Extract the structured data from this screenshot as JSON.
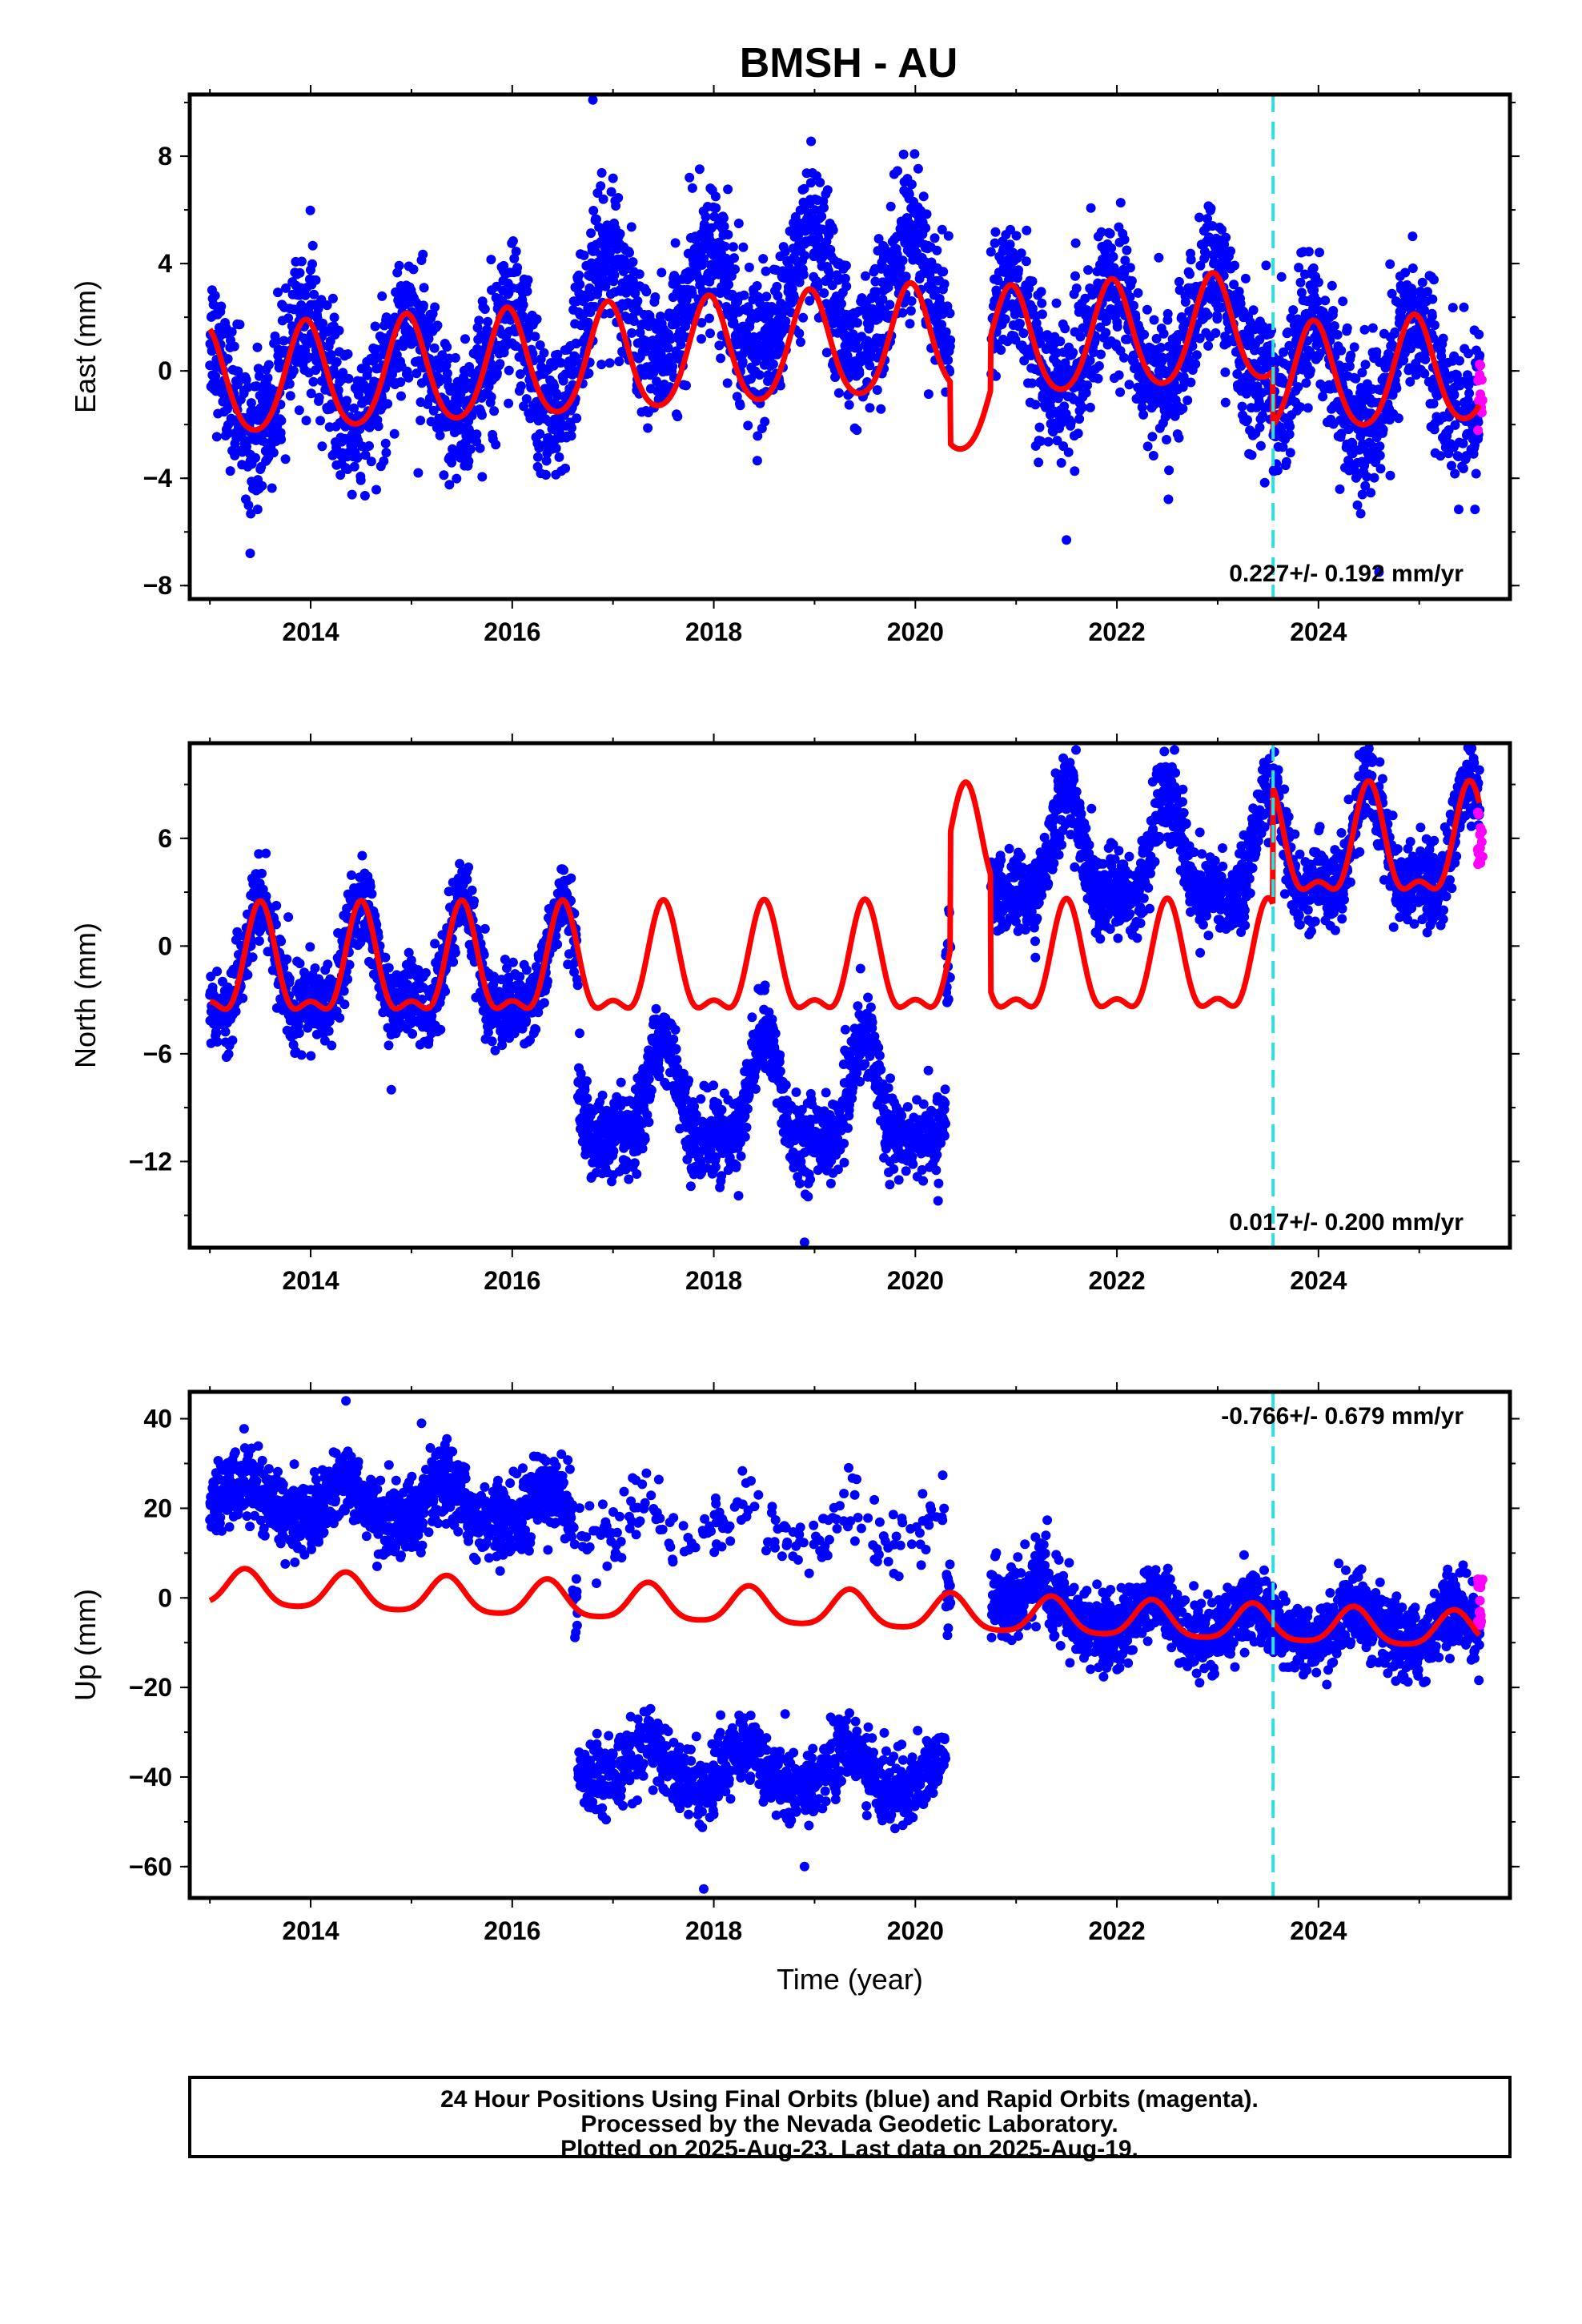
{
  "title": "BMSH - AU",
  "footer": {
    "line1": "24 Hour Positions Using Final Orbits (blue) and Rapid Orbits (magenta).",
    "line2": "Processed by the Nevada Geodetic Laboratory.",
    "line3": "Plotted on 2025-Aug-23. Last data on 2025-Aug-19."
  },
  "colors": {
    "final_points": "#0000ff",
    "rapid_points": "#ff00ff",
    "model": "#ff0000",
    "event_line": "#33dddd",
    "frame": "#000000"
  },
  "chart_data": [
    {
      "type": "scatter",
      "component": "east",
      "ylabel": "East (mm)",
      "xlabel": "",
      "xlim": [
        2012.8,
        2025.9
      ],
      "ylim": [
        -8.5,
        10.3
      ],
      "xticks": [
        2014,
        2016,
        2018,
        2020,
        2022,
        2024
      ],
      "yticks": [
        -8,
        -4,
        0,
        4,
        8
      ],
      "rate": "0.227+/- 0.192 mm/yr",
      "event_line_x": 2023.55,
      "segments": [
        {
          "start": 2013.0,
          "end": 2020.35,
          "offset": 0.0
        },
        {
          "start": 2020.75,
          "end": 2023.55,
          "offset": -0.3
        },
        {
          "start": 2023.55,
          "end": 2025.6,
          "offset": -2.3
        }
      ],
      "model": {
        "start_value": -0.55,
        "rate": 0.227,
        "annual_amp": 2.0,
        "annual_phase_year": 2013.95,
        "semiannual_amp": 0.25
      },
      "scatter_sd": 1.3,
      "drift_anomalies": [
        {
          "start": 2016.6,
          "end": 2020.35,
          "shift": 1.8
        }
      ],
      "rapid_range": [
        -2.5,
        0.3
      ],
      "outliers": [
        [
          2016.8,
          10.1
        ],
        [
          2013.4,
          -6.8
        ],
        [
          2024.6,
          -7.5
        ],
        [
          2021.5,
          -6.3
        ]
      ]
    },
    {
      "type": "scatter",
      "component": "north",
      "ylabel": "North (mm)",
      "xlabel": "",
      "xlim": [
        2012.8,
        2025.9
      ],
      "ylim": [
        -16.8,
        11.3
      ],
      "xticks": [
        2014,
        2016,
        2018,
        2020,
        2022,
        2024
      ],
      "yticks": [
        -12,
        -6,
        0,
        6
      ],
      "rate": "0.017+/- 0.200 mm/yr",
      "event_line_x": 2023.55,
      "segments": [
        {
          "start": 2013.0,
          "end": 2020.35,
          "offset": 0.0
        },
        {
          "start": 2020.75,
          "end": 2023.55,
          "offset": 0.0
        },
        {
          "start": 2023.55,
          "end": 2025.6,
          "offset": 6.5
        }
      ],
      "model": {
        "start_value": -1.5,
        "rate": 0.017,
        "annual_amp": 2.8,
        "annual_phase_year": 2013.5,
        "semiannual_amp": 1.2
      },
      "scatter_sd": 1.1,
      "drift_anomalies": [
        {
          "start": 2016.65,
          "end": 2020.3,
          "shift": -7.5
        },
        {
          "start": 2020.75,
          "end": 2023.55,
          "shift": 6.0
        }
      ],
      "rapid_range": [
        4.0,
        7.5
      ],
      "outliers": [
        [
          2018.9,
          -16.5
        ],
        [
          2024.5,
          11.0
        ],
        [
          2014.8,
          -8.0
        ]
      ]
    },
    {
      "type": "scatter",
      "component": "up",
      "ylabel": "Up (mm)",
      "xlabel": "Time (year)",
      "xlim": [
        2012.8,
        2025.9
      ],
      "ylim": [
        -67,
        46
      ],
      "xticks": [
        2014,
        2016,
        2018,
        2020,
        2022,
        2024
      ],
      "yticks": [
        -60,
        -40,
        -20,
        0,
        20,
        40
      ],
      "rate": "-0.766+/- 0.679 mm/yr",
      "event_line_x": 2023.55,
      "segments": [
        {
          "start": 2013.0,
          "end": 2020.35,
          "offset": 0.0
        },
        {
          "start": 2020.75,
          "end": 2023.55,
          "offset": 0.0
        },
        {
          "start": 2023.55,
          "end": 2025.6,
          "offset": 0.0
        }
      ],
      "model": {
        "start_value": 2.0,
        "rate": -0.766,
        "annual_amp": 4.0,
        "annual_phase_year": 2013.35,
        "semiannual_amp": 0.8
      },
      "scatter_sd": 4.0,
      "drift_anomalies": [
        {
          "start": 2013.0,
          "end": 2016.6,
          "shift": 20.0
        },
        {
          "start": 2016.65,
          "end": 2020.3,
          "shift": -36.0
        },
        {
          "start": 2016.6,
          "end": 2020.3,
          "shift": 18.0,
          "sparse": true
        },
        {
          "start": 2020.75,
          "end": 2021.3,
          "shift": 6.0
        }
      ],
      "rapid_range": [
        -7.0,
        4.5
      ],
      "outliers": [
        [
          2014.35,
          44.0
        ],
        [
          2017.9,
          -65.0
        ],
        [
          2018.9,
          -60.0
        ],
        [
          2015.1,
          39.0
        ]
      ]
    }
  ]
}
